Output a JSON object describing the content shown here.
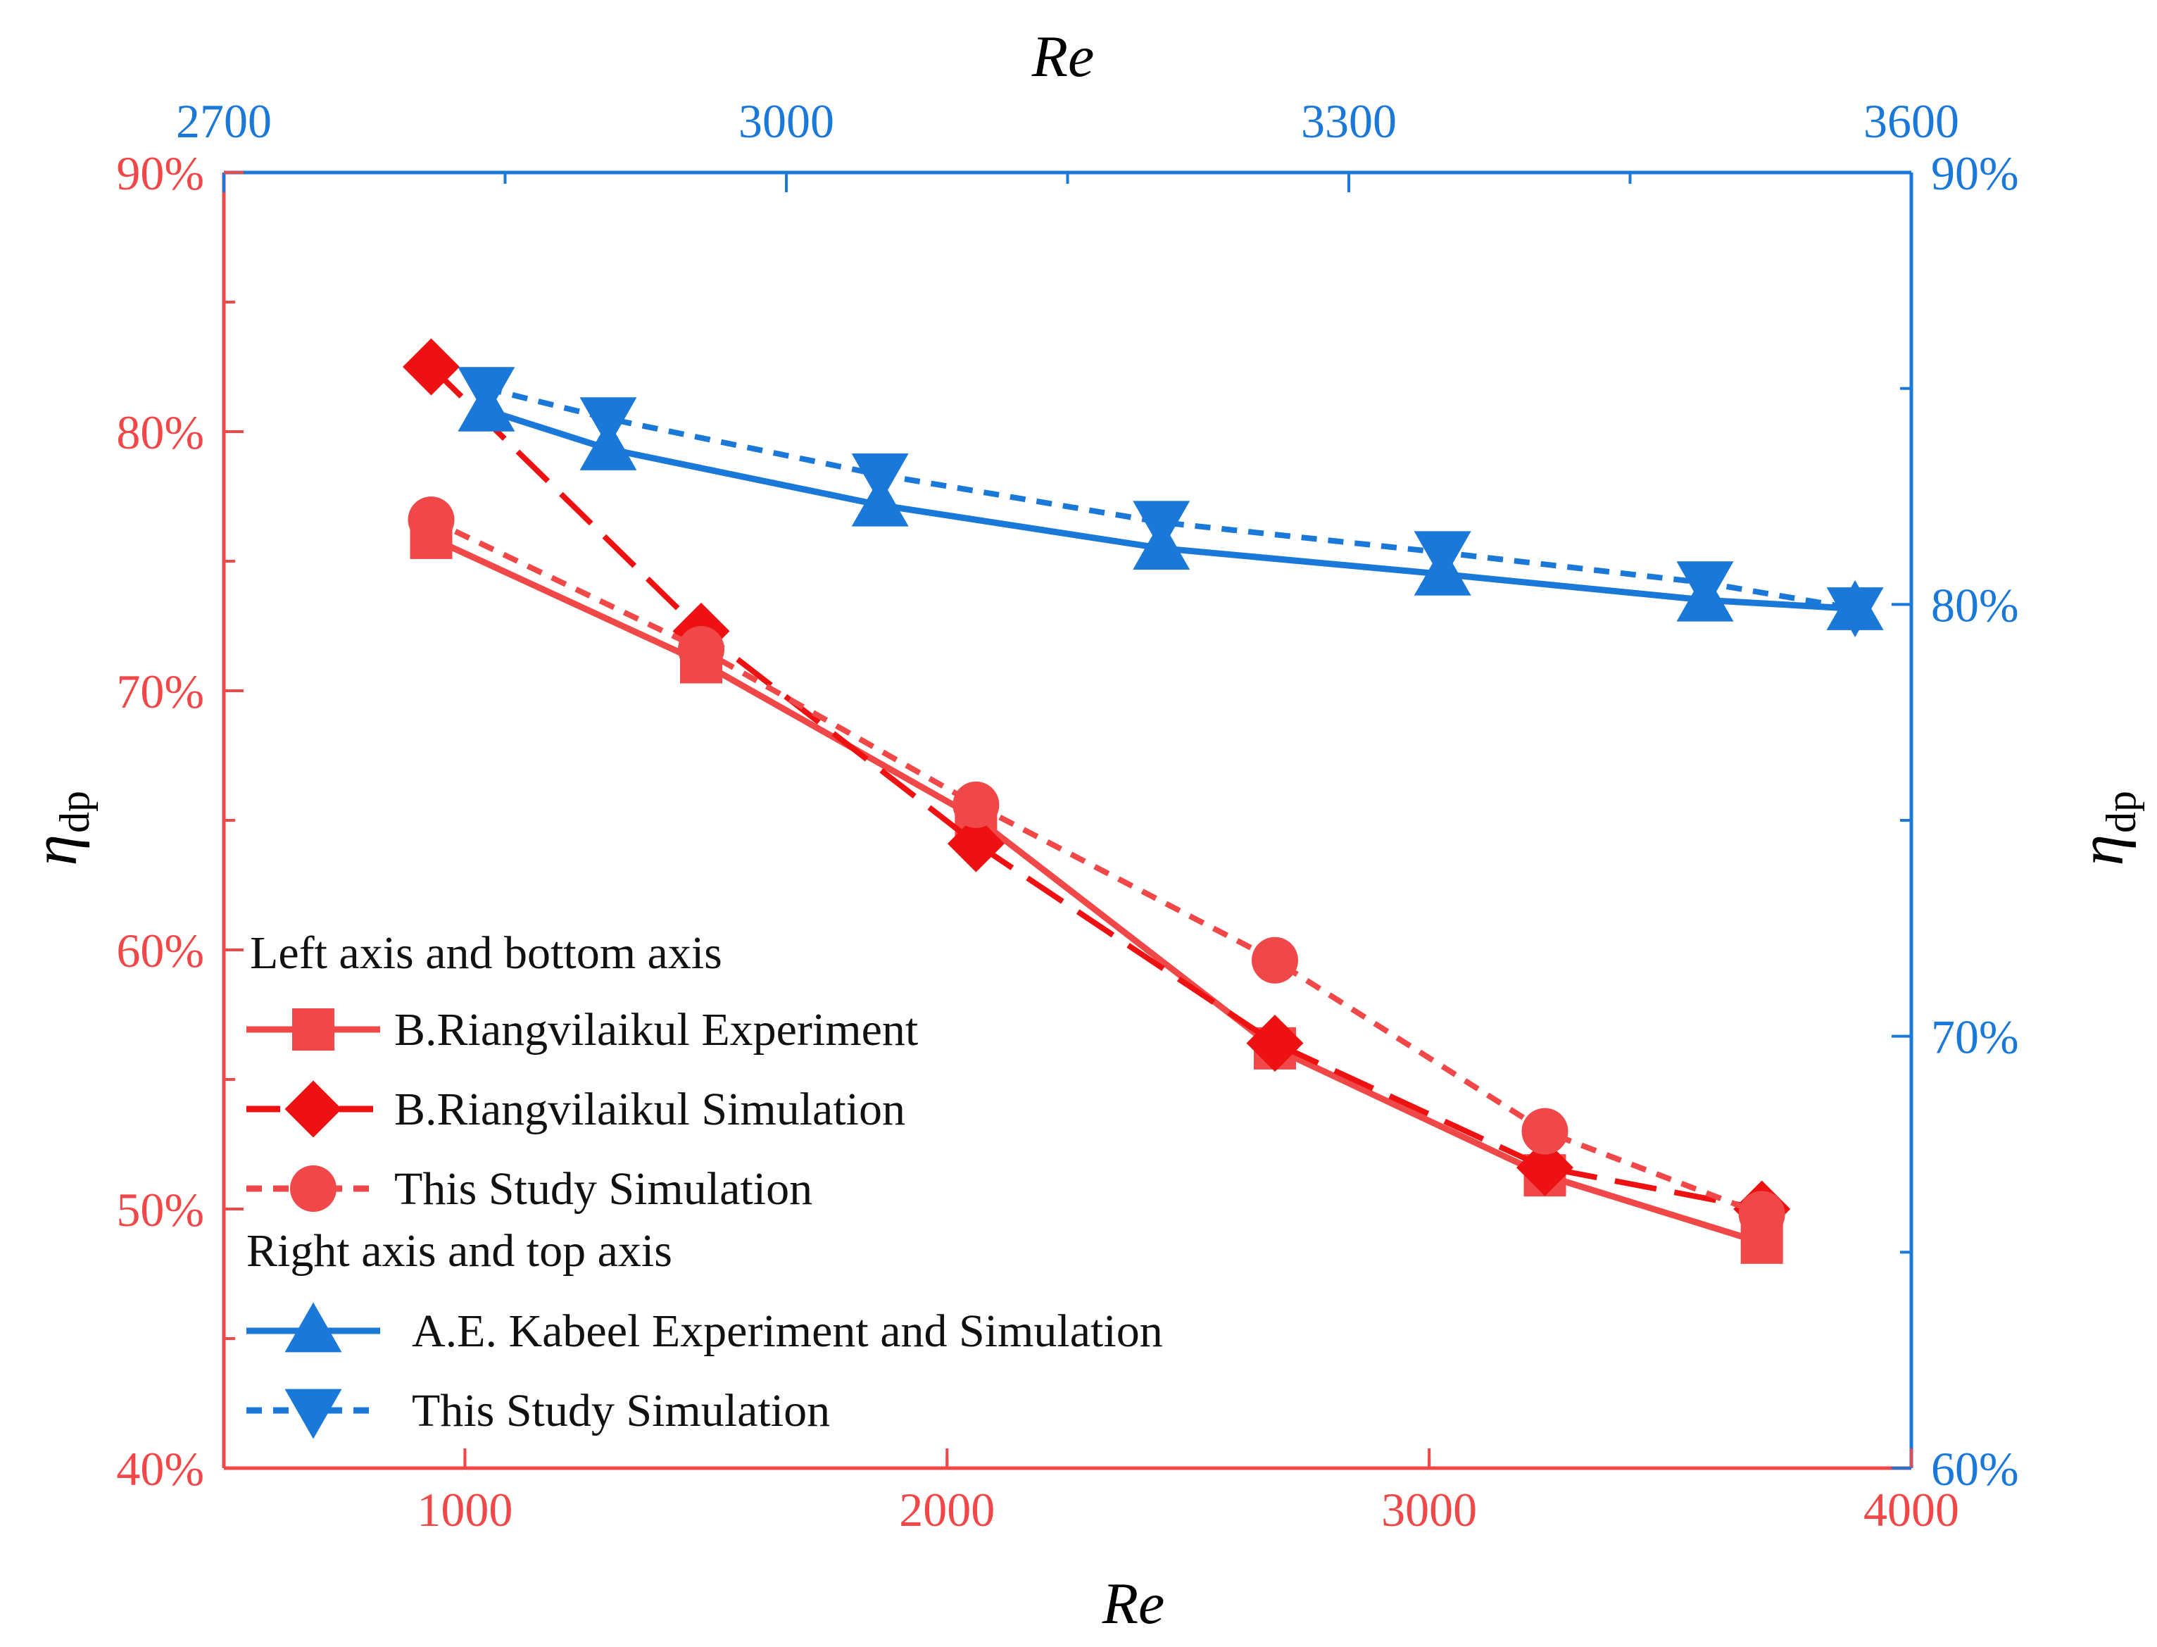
{
  "chart_data": {
    "type": "line",
    "title": "",
    "bottom_axis": {
      "label": "Re",
      "range": [
        500,
        4000
      ],
      "ticks": [
        "1000",
        "2000",
        "3000",
        "4000"
      ],
      "color": "#f04848"
    },
    "top_axis": {
      "label": "Re",
      "range": [
        2700,
        3600
      ],
      "ticks": [
        "2700",
        "3000",
        "3300",
        "3600"
      ],
      "color": "#1a78d8"
    },
    "left_axis": {
      "label": "η",
      "label_sub": "dp",
      "range": [
        40,
        90
      ],
      "ticks": [
        "40%",
        "50%",
        "60%",
        "70%",
        "80%",
        "90%"
      ],
      "color": "#f04848"
    },
    "right_axis": {
      "label": "η",
      "label_sub": "dp",
      "range": [
        60,
        90
      ],
      "ticks": [
        "60%",
        "70%",
        "80%",
        "90%"
      ],
      "color": "#1a78d8"
    },
    "grid": false,
    "legend_position": "bottom-left",
    "legend_headers": {
      "left_bottom": "Left axis and bottom axis",
      "right_top": "Right axis and top axis"
    },
    "series": [
      {
        "name": "B.Riangvilaikul Experiment",
        "axes": "left-bottom",
        "color": "#f04848",
        "marker": "square",
        "line": "solid",
        "x": [
          930,
          1490,
          2060,
          2680,
          3240,
          3690
        ],
        "y": [
          75.9,
          71.1,
          65.1,
          56.2,
          51.3,
          48.7
        ]
      },
      {
        "name": "B.Riangvilaikul Simulation",
        "axes": "left-bottom",
        "color": "#ee1111",
        "marker": "diamond",
        "line": "longdash",
        "x": [
          930,
          1490,
          2060,
          2680,
          3240,
          3690
        ],
        "y": [
          82.5,
          72.3,
          64.1,
          56.4,
          51.6,
          50.0
        ]
      },
      {
        "name": "This Study Simulation",
        "axes": "left-bottom",
        "color": "#f04848",
        "marker": "circle",
        "line": "dash",
        "x": [
          930,
          1490,
          2060,
          2680,
          3240,
          3690
        ],
        "y": [
          76.6,
          71.6,
          65.6,
          59.6,
          53.0,
          49.8
        ]
      },
      {
        "name": "A.E. Kabeel Experiment and Simulation",
        "axes": "right-top",
        "color": "#1a78d8",
        "marker": "triangle-up",
        "line": "solid",
        "x": [
          2840,
          2905,
          3050,
          3200,
          3350,
          3490,
          3570
        ],
        "y": [
          84.5,
          83.6,
          82.3,
          81.3,
          80.7,
          80.1,
          79.9
        ]
      },
      {
        "name": "This Study Simulation",
        "axes": "right-top",
        "color": "#1a78d8",
        "marker": "triangle-down",
        "line": "dash",
        "x": [
          2840,
          2905,
          3050,
          3200,
          3350,
          3490,
          3570
        ],
        "y": [
          85.0,
          84.3,
          83.0,
          81.9,
          81.2,
          80.5,
          79.9
        ]
      }
    ]
  }
}
